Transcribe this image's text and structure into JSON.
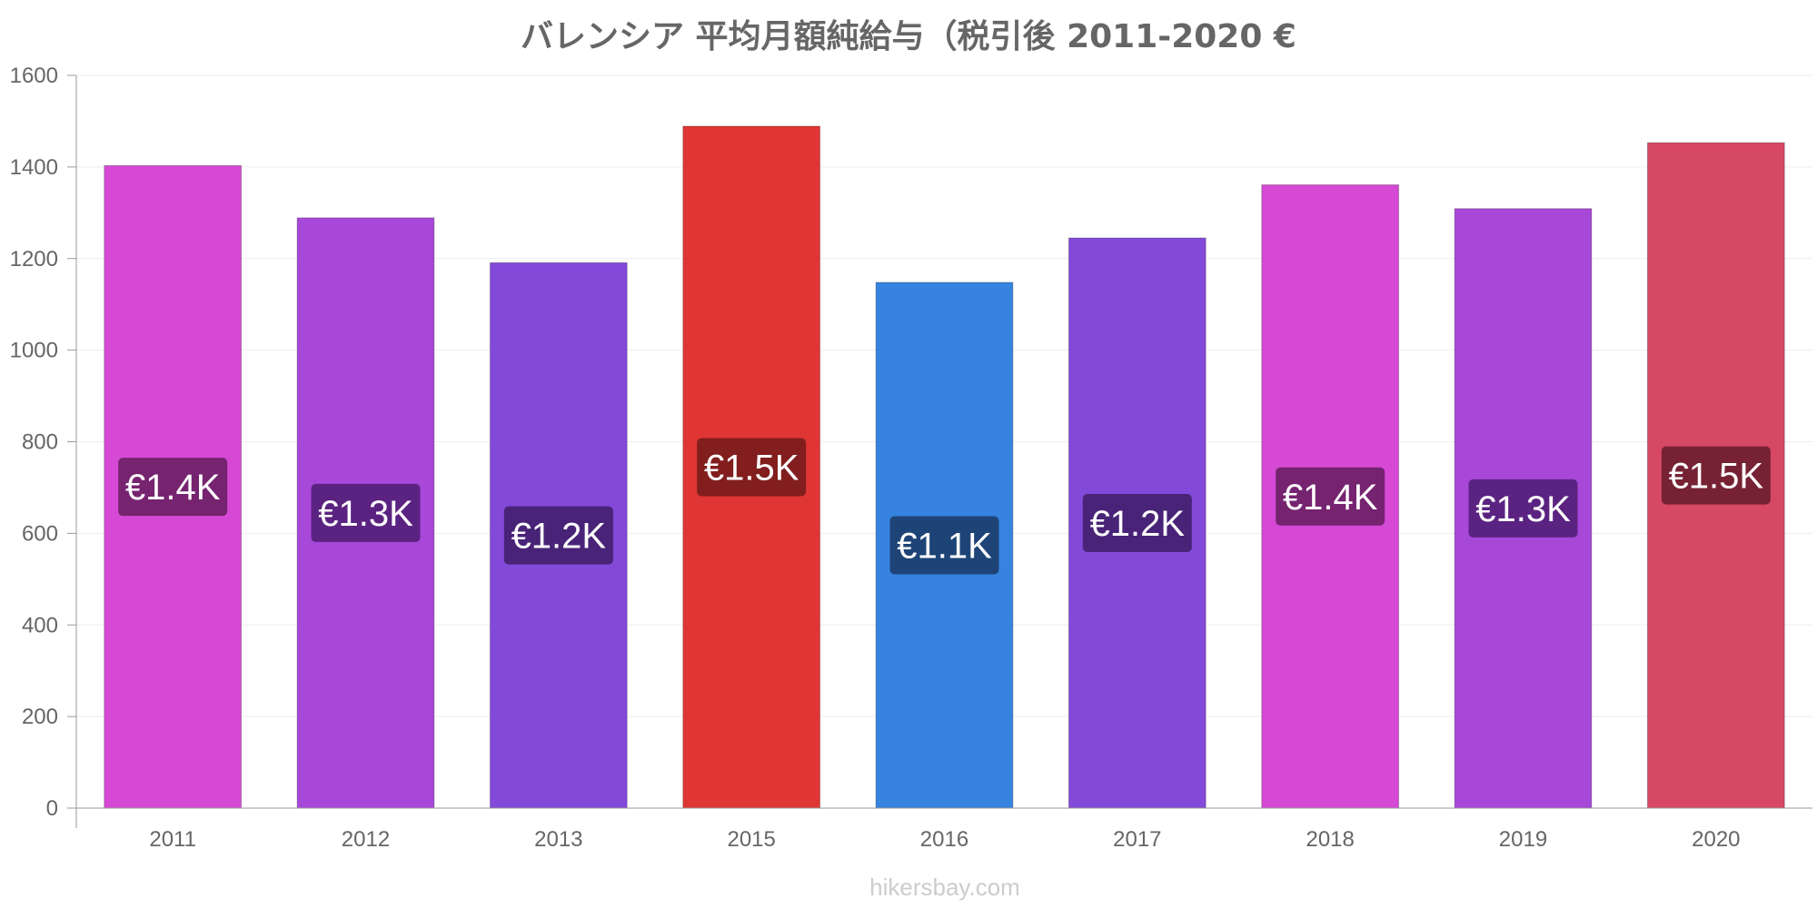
{
  "chart_data": {
    "type": "bar",
    "title": "バレンシア 平均月額純給与（税引後 2011-2020 €",
    "xlabel": "",
    "ylabel": "",
    "categories": [
      "2011",
      "2012",
      "2013",
      "2015",
      "2016",
      "2017",
      "2018",
      "2019",
      "2020"
    ],
    "values": [
      1403,
      1289,
      1191,
      1489,
      1148,
      1245,
      1361,
      1309,
      1453
    ],
    "data_labels": [
      "€1.4K",
      "€1.3K",
      "€1.2K",
      "€1.5K",
      "€1.1K",
      "€1.2K",
      "€1.4K",
      "€1.3K",
      "€1.5K"
    ],
    "bar_colors": [
      "#d549d4",
      "#a748d9",
      "#8349d9",
      "#e03535",
      "#3683e0",
      "#8349d9",
      "#d549d4",
      "#a748d9",
      "#d64864"
    ],
    "label_bg_colors": [
      "#6e2167",
      "#55217a",
      "#43216f",
      "#7a1c1c",
      "#1c3f6e",
      "#43216f",
      "#6e2167",
      "#55217a",
      "#6e1f30"
    ],
    "ylim": [
      0,
      1600
    ],
    "yticks": [
      0,
      200,
      400,
      600,
      800,
      1000,
      1200,
      1400,
      1600
    ],
    "grid": true,
    "legend": "none"
  },
  "watermark": "hikersbay.com"
}
